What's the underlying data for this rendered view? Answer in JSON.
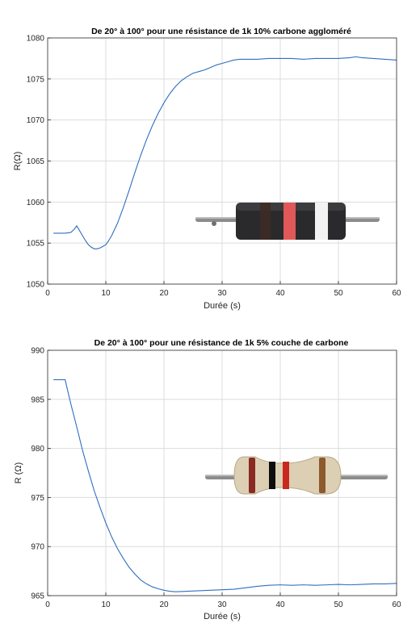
{
  "chart_data": [
    {
      "type": "line",
      "title": "De 20° à 100° pour une résistance de 1k 10% carbone aggloméré",
      "xlabel": "Durée (s)",
      "ylabel": "R(Ω)",
      "xlim": [
        0,
        60
      ],
      "ylim": [
        1050,
        1080
      ],
      "x_ticks": [
        0,
        10,
        20,
        30,
        40,
        50,
        60
      ],
      "y_ticks": [
        1050,
        1055,
        1060,
        1065,
        1070,
        1075,
        1080
      ],
      "grid": true,
      "color": "#2f6fbf",
      "series": [
        {
          "x": [
            1,
            2,
            3,
            4,
            4.6,
            5,
            5.5,
            6,
            6.5,
            7,
            7.5,
            8,
            8.5,
            9,
            9.5,
            10,
            10.5,
            11,
            12,
            13,
            14,
            15,
            16,
            17,
            18,
            19,
            20,
            21,
            22,
            23,
            24,
            25,
            26,
            27,
            28,
            29,
            30,
            31,
            32,
            33,
            34,
            35,
            36,
            38,
            40,
            42,
            44,
            46,
            48,
            50,
            52,
            53,
            54,
            56,
            58,
            60
          ],
          "y": [
            1056.2,
            1056.2,
            1056.2,
            1056.3,
            1056.7,
            1057.1,
            1056.5,
            1055.9,
            1055.3,
            1054.8,
            1054.5,
            1054.3,
            1054.3,
            1054.4,
            1054.6,
            1054.8,
            1055.3,
            1055.9,
            1057.4,
            1059.3,
            1061.4,
            1063.6,
            1065.7,
            1067.6,
            1069.3,
            1070.8,
            1072.1,
            1073.2,
            1074.1,
            1074.8,
            1075.3,
            1075.7,
            1075.9,
            1076.1,
            1076.4,
            1076.7,
            1076.9,
            1077.1,
            1077.3,
            1077.4,
            1077.4,
            1077.4,
            1077.4,
            1077.5,
            1077.5,
            1077.5,
            1077.4,
            1077.5,
            1077.5,
            1077.5,
            1077.6,
            1077.7,
            1077.6,
            1077.5,
            1077.4,
            1077.3
          ]
        }
      ]
    },
    {
      "type": "line",
      "title": "De 20° à 100° pour une résistance de 1k 5% couche de carbone",
      "xlabel": "Durée (s)",
      "ylabel": "R (Ω)",
      "xlim": [
        0,
        60
      ],
      "ylim": [
        965,
        990
      ],
      "x_ticks": [
        0,
        10,
        20,
        30,
        40,
        50,
        60
      ],
      "y_ticks": [
        965,
        970,
        975,
        980,
        985,
        990
      ],
      "grid": true,
      "color": "#2f6fbf",
      "series": [
        {
          "x": [
            1,
            2,
            3,
            4,
            5,
            6,
            7,
            8,
            9,
            10,
            11,
            12,
            13,
            14,
            15,
            16,
            17,
            18,
            19,
            20,
            21,
            22,
            24,
            26,
            28,
            30,
            32,
            34,
            36,
            38,
            40,
            42,
            44,
            46,
            48,
            50,
            52,
            54,
            56,
            58,
            60
          ],
          "y": [
            987,
            987,
            987,
            984.5,
            982.2,
            979.8,
            977.7,
            975.7,
            974.0,
            972.4,
            971.0,
            969.8,
            968.8,
            967.9,
            967.2,
            966.6,
            966.2,
            965.9,
            965.7,
            965.55,
            965.45,
            965.4,
            965.45,
            965.5,
            965.55,
            965.6,
            965.65,
            965.8,
            965.95,
            966.05,
            966.1,
            966.05,
            966.1,
            966.05,
            966.1,
            966.15,
            966.1,
            966.15,
            966.2,
            966.2,
            966.25
          ]
        }
      ]
    }
  ]
}
